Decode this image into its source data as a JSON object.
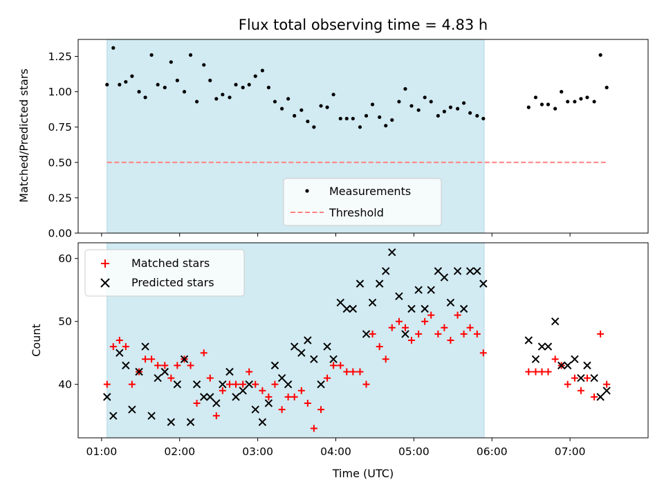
{
  "chart_data": [
    {
      "type": "scatter",
      "title": "Flux total observing time = 4.83 h",
      "ylabel": "Matched/Predicted stars",
      "xlabel": "",
      "x_unit": "hours UTC",
      "xlim": [
        0.7,
        8.0
      ],
      "ylim": [
        0.0,
        1.37
      ],
      "yticks": [
        0.0,
        0.25,
        0.5,
        0.75,
        1.0,
        1.25
      ],
      "ytick_labels": [
        "0.00",
        "0.25",
        "0.50",
        "0.75",
        "1.00",
        "1.25"
      ],
      "xticks": [
        1,
        2,
        3,
        4,
        5,
        6,
        7
      ],
      "shaded_span": [
        1.07,
        5.9
      ],
      "shaded_color": "#add8e6",
      "grid": false,
      "legend_position": "bottom-center",
      "series": [
        {
          "name": "Measurements",
          "kind": "points",
          "color": "#000000",
          "x": [
            1.07,
            1.15,
            1.23,
            1.31,
            1.39,
            1.48,
            1.56,
            1.64,
            1.72,
            1.81,
            1.89,
            1.97,
            2.06,
            2.14,
            2.22,
            2.31,
            2.39,
            2.47,
            2.55,
            2.64,
            2.72,
            2.81,
            2.89,
            2.97,
            3.06,
            3.14,
            3.22,
            3.31,
            3.39,
            3.47,
            3.56,
            3.64,
            3.72,
            3.81,
            3.89,
            3.97,
            4.06,
            4.14,
            4.22,
            4.31,
            4.39,
            4.47,
            4.56,
            4.64,
            4.72,
            4.81,
            4.89,
            4.97,
            5.06,
            5.14,
            5.22,
            5.31,
            5.39,
            5.47,
            5.56,
            5.64,
            5.72,
            5.81,
            5.89,
            6.47,
            6.56,
            6.64,
            6.72,
            6.81,
            6.89,
            6.97,
            7.06,
            7.14,
            7.22,
            7.31,
            7.39,
            7.47
          ],
          "y": [
            1.05,
            1.31,
            1.05,
            1.07,
            1.11,
            1.0,
            0.96,
            1.26,
            1.05,
            1.03,
            1.21,
            1.08,
            1.0,
            1.26,
            0.93,
            1.19,
            1.08,
            0.95,
            0.98,
            0.96,
            1.05,
            1.03,
            1.05,
            1.11,
            1.15,
            1.03,
            0.93,
            0.88,
            0.95,
            0.83,
            0.87,
            0.79,
            0.75,
            0.9,
            0.89,
            0.98,
            0.81,
            0.81,
            0.81,
            0.75,
            0.83,
            0.91,
            0.82,
            0.76,
            0.8,
            0.93,
            1.02,
            0.9,
            0.87,
            0.96,
            0.93,
            0.83,
            0.86,
            0.89,
            0.88,
            0.92,
            0.85,
            0.83,
            0.81,
            0.89,
            0.96,
            0.91,
            0.91,
            0.88,
            1.0,
            0.93,
            0.93,
            0.95,
            0.96,
            0.93,
            1.26,
            1.03
          ]
        },
        {
          "name": "Threshold",
          "kind": "dashed-line",
          "color": "#ff8080",
          "x": [
            1.07,
            7.47
          ],
          "y": [
            0.5,
            0.5
          ]
        }
      ]
    },
    {
      "type": "scatter",
      "title": "",
      "xlabel": "Time (UTC)",
      "ylabel": "Count",
      "xlim": [
        0.7,
        8.0
      ],
      "ylim": [
        31.5,
        62.5
      ],
      "yticks": [
        40,
        50,
        60
      ],
      "ytick_labels": [
        "40",
        "50",
        "60"
      ],
      "xticks": [
        1,
        2,
        3,
        4,
        5,
        6,
        7
      ],
      "xtick_labels": [
        "01:00",
        "02:00",
        "03:00",
        "04:00",
        "05:00",
        "06:00",
        "07:00"
      ],
      "shaded_span": [
        1.07,
        5.9
      ],
      "shaded_color": "#add8e6",
      "grid": false,
      "legend_position": "top-left",
      "series": [
        {
          "name": "Matched stars",
          "kind": "plus",
          "color": "#ff0000",
          "x": [
            1.07,
            1.15,
            1.23,
            1.31,
            1.39,
            1.48,
            1.56,
            1.64,
            1.72,
            1.81,
            1.89,
            1.97,
            2.06,
            2.14,
            2.22,
            2.31,
            2.39,
            2.47,
            2.55,
            2.64,
            2.72,
            2.81,
            2.89,
            2.97,
            3.06,
            3.14,
            3.22,
            3.31,
            3.39,
            3.47,
            3.56,
            3.64,
            3.72,
            3.81,
            3.89,
            3.97,
            4.06,
            4.14,
            4.22,
            4.31,
            4.39,
            4.47,
            4.56,
            4.64,
            4.72,
            4.81,
            4.89,
            4.97,
            5.06,
            5.14,
            5.22,
            5.31,
            5.39,
            5.47,
            5.56,
            5.64,
            5.72,
            5.81,
            5.89,
            6.47,
            6.56,
            6.64,
            6.72,
            6.81,
            6.89,
            6.97,
            7.06,
            7.14,
            7.22,
            7.31,
            7.39,
            7.47
          ],
          "y": [
            40,
            46,
            47,
            46,
            40,
            42,
            44,
            44,
            43,
            43,
            41,
            43,
            44,
            43,
            37,
            45,
            41,
            35,
            39,
            40,
            40,
            40,
            42,
            40,
            39,
            38,
            40,
            36,
            38,
            38,
            39,
            37,
            33,
            36,
            41,
            43,
            43,
            42,
            42,
            42,
            40,
            48,
            46,
            44,
            49,
            50,
            49,
            47,
            48,
            50,
            51,
            48,
            49,
            47,
            51,
            48,
            49,
            48,
            45,
            42,
            42,
            42,
            42,
            44,
            43,
            40,
            41,
            39,
            41,
            38,
            48,
            40
          ]
        },
        {
          "name": "Predicted stars",
          "kind": "x",
          "color": "#000000",
          "x": [
            1.07,
            1.15,
            1.23,
            1.31,
            1.39,
            1.48,
            1.56,
            1.64,
            1.72,
            1.81,
            1.89,
            1.97,
            2.06,
            2.14,
            2.22,
            2.31,
            2.39,
            2.47,
            2.55,
            2.64,
            2.72,
            2.81,
            2.89,
            2.97,
            3.06,
            3.14,
            3.22,
            3.31,
            3.39,
            3.47,
            3.56,
            3.64,
            3.72,
            3.81,
            3.89,
            3.97,
            4.06,
            4.14,
            4.22,
            4.31,
            4.39,
            4.47,
            4.56,
            4.64,
            4.72,
            4.81,
            4.89,
            4.97,
            5.06,
            5.14,
            5.22,
            5.31,
            5.39,
            5.47,
            5.56,
            5.64,
            5.72,
            5.81,
            5.89,
            6.47,
            6.56,
            6.64,
            6.72,
            6.81,
            6.89,
            6.97,
            7.06,
            7.14,
            7.22,
            7.31,
            7.39,
            7.47
          ],
          "y": [
            38,
            35,
            45,
            43,
            36,
            42,
            46,
            35,
            41,
            42,
            34,
            40,
            44,
            34,
            40,
            38,
            38,
            37,
            40,
            42,
            38,
            39,
            40,
            36,
            34,
            37,
            43,
            41,
            40,
            46,
            45,
            47,
            44,
            40,
            46,
            44,
            53,
            52,
            52,
            56,
            48,
            53,
            56,
            58,
            61,
            54,
            48,
            52,
            55,
            52,
            55,
            58,
            57,
            53,
            58,
            52,
            58,
            58,
            56,
            47,
            44,
            46,
            46,
            50,
            43,
            43,
            44,
            41,
            43,
            41,
            38,
            39
          ]
        }
      ]
    }
  ]
}
